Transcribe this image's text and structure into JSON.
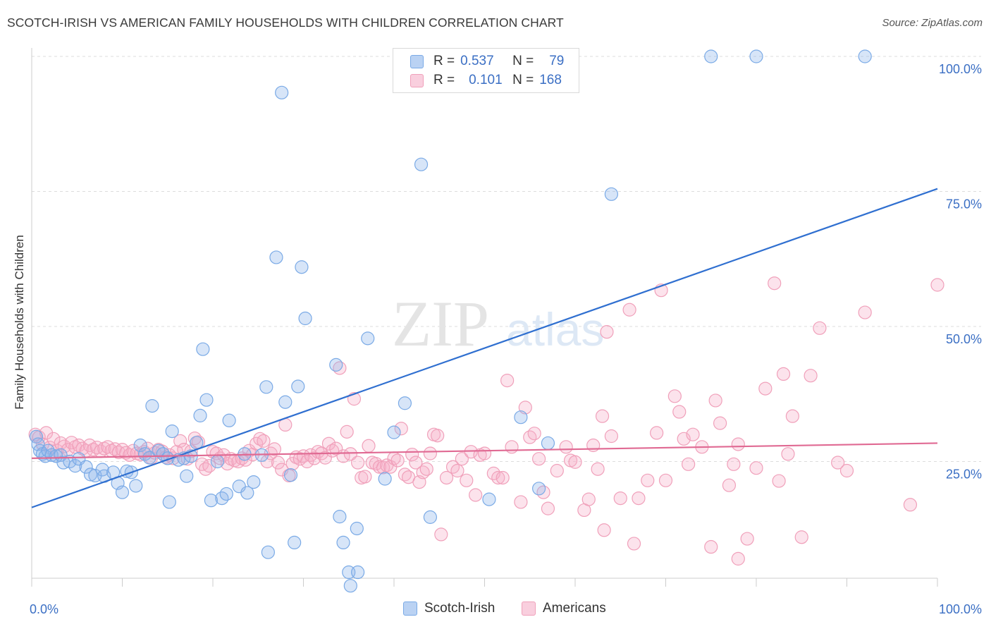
{
  "chart_data": {
    "type": "scatter",
    "title": "SCOTCH-IRISH VS AMERICAN FAMILY HOUSEHOLDS WITH CHILDREN CORRELATION CHART",
    "source": "Source: ZipAtlas.com",
    "ylabel": "Family Households with Children",
    "xlabel": "",
    "xlim": [
      0,
      100
    ],
    "ylim": [
      0,
      102
    ],
    "x_tick_labels": [
      "0.0%",
      "100.0%"
    ],
    "y_tick_labels": [
      "100.0%",
      "75.0%",
      "50.0%",
      "25.0%"
    ],
    "y_ticks": [
      100,
      75,
      50,
      25
    ],
    "grid": true,
    "watermark": "ZIPatlas",
    "legend": [
      {
        "r_label": "R =",
        "r_value": "0.537",
        "n_label": "N =",
        "n_value": "79"
      },
      {
        "r_label": "R =",
        "r_value": "0.101",
        "n_label": "N =",
        "n_value": "168"
      }
    ],
    "series": [
      {
        "name": "Scotch-Irish",
        "color": "#7aaae6",
        "fill": "rgba(140,180,235,0.35)",
        "line_color": "#2f6fd0",
        "trend": {
          "x0": 0,
          "y0": 16.5,
          "x1": 100,
          "y1": 75.5
        },
        "points": [
          [
            0.5,
            29.6
          ],
          [
            0.7,
            28.2
          ],
          [
            0.9,
            27
          ],
          [
            1.2,
            26.4
          ],
          [
            1.5,
            26
          ],
          [
            1.8,
            27
          ],
          [
            2.2,
            26.2
          ],
          [
            2.7,
            26
          ],
          [
            3.2,
            26.2
          ],
          [
            3.5,
            24.8
          ],
          [
            4.2,
            25
          ],
          [
            4.8,
            24.2
          ],
          [
            5.2,
            25.5
          ],
          [
            6,
            24
          ],
          [
            6.5,
            22.6
          ],
          [
            7,
            22.4
          ],
          [
            7.8,
            23.5
          ],
          [
            8,
            22.3
          ],
          [
            9,
            23
          ],
          [
            9.5,
            21
          ],
          [
            10,
            19.3
          ],
          [
            10.5,
            23.2
          ],
          [
            11,
            23
          ],
          [
            11.5,
            20.5
          ],
          [
            12,
            28
          ],
          [
            12.5,
            26.4
          ],
          [
            13,
            25.7
          ],
          [
            13.3,
            35.3
          ],
          [
            14,
            27
          ],
          [
            14.5,
            26.4
          ],
          [
            15,
            25.6
          ],
          [
            15.2,
            17.5
          ],
          [
            15.5,
            30.6
          ],
          [
            16.2,
            25.3
          ],
          [
            16.8,
            25.6
          ],
          [
            17.1,
            22.3
          ],
          [
            17.6,
            26
          ],
          [
            18.2,
            28.5
          ],
          [
            18.6,
            33.5
          ],
          [
            18.9,
            45.8
          ],
          [
            19.3,
            36.4
          ],
          [
            19.8,
            17.8
          ],
          [
            20.5,
            25
          ],
          [
            21,
            18.2
          ],
          [
            21.5,
            19
          ],
          [
            21.8,
            32.6
          ],
          [
            22.9,
            20.4
          ],
          [
            23.5,
            26.4
          ],
          [
            23.8,
            19.2
          ],
          [
            24.5,
            21.2
          ],
          [
            25.4,
            26.2
          ],
          [
            25.9,
            38.8
          ],
          [
            27,
            62.8
          ],
          [
            27.6,
            93.3
          ],
          [
            28,
            36
          ],
          [
            28.6,
            22.5
          ],
          [
            29,
            10
          ],
          [
            29.4,
            38.9
          ],
          [
            29.8,
            61
          ],
          [
            30.2,
            51.5
          ],
          [
            26.1,
            8.2
          ],
          [
            33.6,
            42.9
          ],
          [
            34,
            14.8
          ],
          [
            34.4,
            10
          ],
          [
            35,
            4.5
          ],
          [
            35.2,
            2
          ],
          [
            36,
            4.5
          ],
          [
            35.9,
            12.6
          ],
          [
            37.1,
            47.8
          ],
          [
            39,
            21.8
          ],
          [
            40,
            30.4
          ],
          [
            41.2,
            35.8
          ],
          [
            43,
            80
          ],
          [
            44,
            14.7
          ],
          [
            50.5,
            18
          ],
          [
            54,
            33.2
          ],
          [
            56,
            20
          ],
          [
            57,
            28.4
          ],
          [
            64,
            74.5
          ],
          [
            75,
            100
          ],
          [
            80,
            100
          ],
          [
            92,
            100
          ]
        ]
      },
      {
        "name": "Americans",
        "color": "#f0a0ba",
        "fill": "rgba(245,175,200,0.35)",
        "line_color": "#e06a93",
        "trend": {
          "x0": 0,
          "y0": 25.6,
          "x1": 100,
          "y1": 28.4
        },
        "points": [
          [
            0.4,
            30
          ],
          [
            0.8,
            29.5
          ],
          [
            1.2,
            28.2
          ],
          [
            1.6,
            30.3
          ],
          [
            2,
            27.6
          ],
          [
            2.4,
            29.2
          ],
          [
            2.8,
            27
          ],
          [
            3.2,
            28.4
          ],
          [
            3.6,
            27.8
          ],
          [
            4,
            27.2
          ],
          [
            4.4,
            28.5
          ],
          [
            4.8,
            27.7
          ],
          [
            5.2,
            28
          ],
          [
            5.6,
            27.4
          ],
          [
            6,
            27
          ],
          [
            6.4,
            28
          ],
          [
            6.8,
            27.2
          ],
          [
            7.2,
            27.6
          ],
          [
            7.6,
            26.9
          ],
          [
            8,
            27.4
          ],
          [
            8.4,
            27.7
          ],
          [
            8.8,
            27
          ],
          [
            9.2,
            27.3
          ],
          [
            9.6,
            26.7
          ],
          [
            10,
            27.2
          ],
          [
            10.4,
            26.6
          ],
          [
            10.8,
            26.2
          ],
          [
            11.2,
            27
          ],
          [
            11.6,
            26.5
          ],
          [
            12,
            26.3
          ],
          [
            12.4,
            26.8
          ],
          [
            12.8,
            27.4
          ],
          [
            13.2,
            25.7
          ],
          [
            13.6,
            26.6
          ],
          [
            14,
            27.2
          ],
          [
            14.4,
            26.9
          ],
          [
            14.8,
            25.8
          ],
          [
            15.2,
            26.2
          ],
          [
            15.6,
            25.6
          ],
          [
            16,
            26.8
          ],
          [
            16.4,
            28.8
          ],
          [
            16.8,
            27.2
          ],
          [
            17.2,
            25.5
          ],
          [
            17.6,
            26.9
          ],
          [
            18,
            29.3
          ],
          [
            18.4,
            28.6
          ],
          [
            18.8,
            24.5
          ],
          [
            19.2,
            23.6
          ],
          [
            19.6,
            24.2
          ],
          [
            20,
            26.8
          ],
          [
            20.4,
            26.5
          ],
          [
            20.8,
            25.6
          ],
          [
            21.2,
            26.2
          ],
          [
            21.6,
            24.6
          ],
          [
            22,
            25.5
          ],
          [
            22.4,
            25.2
          ],
          [
            22.8,
            25
          ],
          [
            23.2,
            25.6
          ],
          [
            23.6,
            25.3
          ],
          [
            24,
            27
          ],
          [
            24.4,
            26.3
          ],
          [
            24.8,
            28.3
          ],
          [
            25.2,
            29.2
          ],
          [
            25.6,
            28.8
          ],
          [
            26,
            25
          ],
          [
            26.4,
            26.5
          ],
          [
            26.8,
            27.3
          ],
          [
            27.2,
            24.8
          ],
          [
            27.6,
            23.5
          ],
          [
            28,
            31.8
          ],
          [
            28.4,
            22.4
          ],
          [
            28.8,
            24.6
          ],
          [
            29.2,
            25.8
          ],
          [
            29.6,
            25.5
          ],
          [
            30,
            26
          ],
          [
            30.4,
            25
          ],
          [
            30.8,
            26.2
          ],
          [
            31.2,
            25.6
          ],
          [
            31.6,
            26.8
          ],
          [
            32,
            26.5
          ],
          [
            32.4,
            25.7
          ],
          [
            32.8,
            28.3
          ],
          [
            33.2,
            27
          ],
          [
            33.6,
            27.4
          ],
          [
            34,
            42.3
          ],
          [
            34.4,
            26
          ],
          [
            34.8,
            30.5
          ],
          [
            35.2,
            26.4
          ],
          [
            35.6,
            36.6
          ],
          [
            36,
            24.8
          ],
          [
            36.4,
            22
          ],
          [
            36.8,
            22.2
          ],
          [
            37.2,
            27.9
          ],
          [
            37.6,
            24.8
          ],
          [
            38,
            24.6
          ],
          [
            38.4,
            24
          ],
          [
            38.8,
            23.9
          ],
          [
            39.2,
            24.3
          ],
          [
            39.6,
            24
          ],
          [
            40,
            25.6
          ],
          [
            40.4,
            25.2
          ],
          [
            40.8,
            31.1
          ],
          [
            41.2,
            22.6
          ],
          [
            41.6,
            22.1
          ],
          [
            42,
            26.3
          ],
          [
            42.4,
            24.8
          ],
          [
            42.8,
            21.2
          ],
          [
            43.2,
            23
          ],
          [
            43.6,
            23.6
          ],
          [
            44,
            26.5
          ],
          [
            44.4,
            30
          ],
          [
            44.8,
            29.8
          ],
          [
            45.2,
            11.5
          ],
          [
            45.8,
            22
          ],
          [
            46.5,
            24
          ],
          [
            47,
            23.3
          ],
          [
            47.5,
            25.5
          ],
          [
            48,
            21.5
          ],
          [
            48.5,
            26.8
          ],
          [
            49,
            18.8
          ],
          [
            49.5,
            26.2
          ],
          [
            50,
            26.5
          ],
          [
            51,
            22.8
          ],
          [
            51.5,
            22
          ],
          [
            52,
            22
          ],
          [
            52.5,
            40
          ],
          [
            53,
            27.7
          ],
          [
            54,
            17.5
          ],
          [
            54.5,
            35
          ],
          [
            55,
            29.5
          ],
          [
            55.5,
            30.2
          ],
          [
            56,
            25.5
          ],
          [
            56.5,
            19.3
          ],
          [
            57,
            16.3
          ],
          [
            58,
            23.3
          ],
          [
            59,
            27.7
          ],
          [
            59.5,
            25.2
          ],
          [
            60,
            24.9
          ],
          [
            61,
            16
          ],
          [
            61.5,
            18
          ],
          [
            62,
            28
          ],
          [
            62.5,
            23.6
          ],
          [
            63,
            33.4
          ],
          [
            63.5,
            49
          ],
          [
            64,
            29.7
          ],
          [
            65,
            18.2
          ],
          [
            66,
            53.1
          ],
          [
            66.5,
            9.8
          ],
          [
            67,
            18.2
          ],
          [
            68,
            21.5
          ],
          [
            69,
            30.3
          ],
          [
            69.5,
            56.7
          ],
          [
            70,
            21.5
          ],
          [
            71,
            37.1
          ],
          [
            71.5,
            34.2
          ],
          [
            72,
            29.2
          ],
          [
            72.5,
            24.5
          ],
          [
            73,
            30
          ],
          [
            74,
            27.7
          ],
          [
            75,
            9.2
          ],
          [
            75.5,
            36.3
          ],
          [
            76,
            32.1
          ],
          [
            77,
            20.6
          ],
          [
            77.5,
            24.5
          ],
          [
            78,
            28.2
          ],
          [
            79,
            10.7
          ],
          [
            80,
            23.8
          ],
          [
            81,
            38.5
          ],
          [
            82,
            58
          ],
          [
            82.5,
            21.4
          ],
          [
            83,
            41.2
          ],
          [
            83.5,
            26.4
          ],
          [
            84,
            33.4
          ],
          [
            85,
            11
          ],
          [
            86,
            40.9
          ],
          [
            87,
            49.7
          ],
          [
            89,
            24.8
          ],
          [
            90,
            23.3
          ],
          [
            92,
            52.6
          ],
          [
            97,
            17
          ],
          [
            100,
            57.7
          ],
          [
            78,
            7
          ],
          [
            63.2,
            12.3
          ]
        ]
      }
    ]
  }
}
